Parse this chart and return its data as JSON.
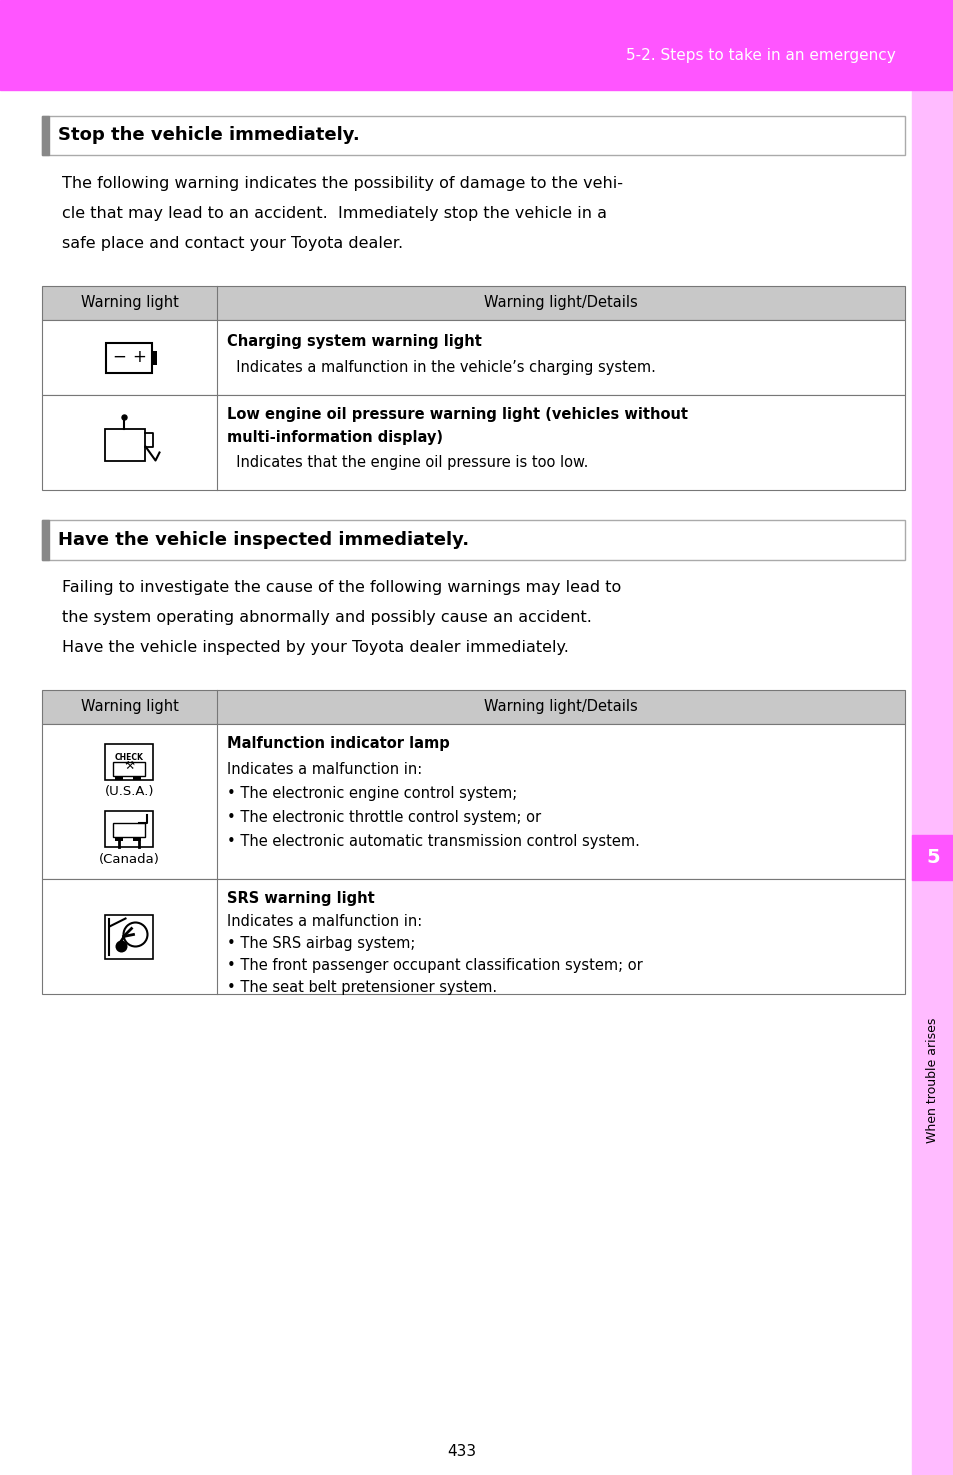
{
  "page_bg": "#ffffff",
  "header_bg": "#ff55ff",
  "header_text": "5-2. Steps to take in an emergency",
  "header_text_color": "#ffffff",
  "right_sidebar_bg": "#ffbbff",
  "right_tab_bg": "#ff55ff",
  "right_tab_text": "5",
  "right_tab_text2": "When trouble arises",
  "page_number": "433",
  "section1_heading": "Stop the vehicle immediately.",
  "section1_body_lines": [
    "The following warning indicates the possibility of damage to the vehi-",
    "cle that may lead to an accident.  Immediately stop the vehicle in a",
    "safe place and contact your Toyota dealer."
  ],
  "section2_heading": "Have the vehicle inspected immediately.",
  "section2_body_lines": [
    "Failing to investigate the cause of the following warnings may lead to",
    "the system operating abnormally and possibly cause an accident.",
    "Have the vehicle inspected by your Toyota dealer immediately."
  ],
  "table_header_col1": "Warning light",
  "table_header_col2": "Warning light/Details",
  "table1_row1_title": "Charging system warning light",
  "table1_row1_detail": "  Indicates a malfunction in the vehicle’s charging system.",
  "table1_row2_title1": "Low engine oil pressure warning light (vehicles without",
  "table1_row2_title2": "multi-information display)",
  "table1_row2_detail": "  Indicates that the engine oil pressure is too low.",
  "table2_row1_title": "Malfunction indicator lamp",
  "table2_row1_detail_lines": [
    "Indicates a malfunction in:",
    "• The electronic engine control system;",
    "• The electronic throttle control system; or",
    "• The electronic automatic transmission control system."
  ],
  "table2_row1_label1": "(U.S.A.)",
  "table2_row1_label2": "(Canada)",
  "table2_row2_title": "SRS warning light",
  "table2_row2_detail_lines": [
    "Indicates a malfunction in:",
    "• The SRS airbag system;",
    "• The front passenger occupant classification system; or",
    "• The seat belt pretensioner system."
  ],
  "header_color": "#ff55ff",
  "sidebar_color": "#ffbbff",
  "tab_color": "#ff55ff",
  "table_header_gray": "#c8c8c8",
  "left_bar_color": "#888888"
}
